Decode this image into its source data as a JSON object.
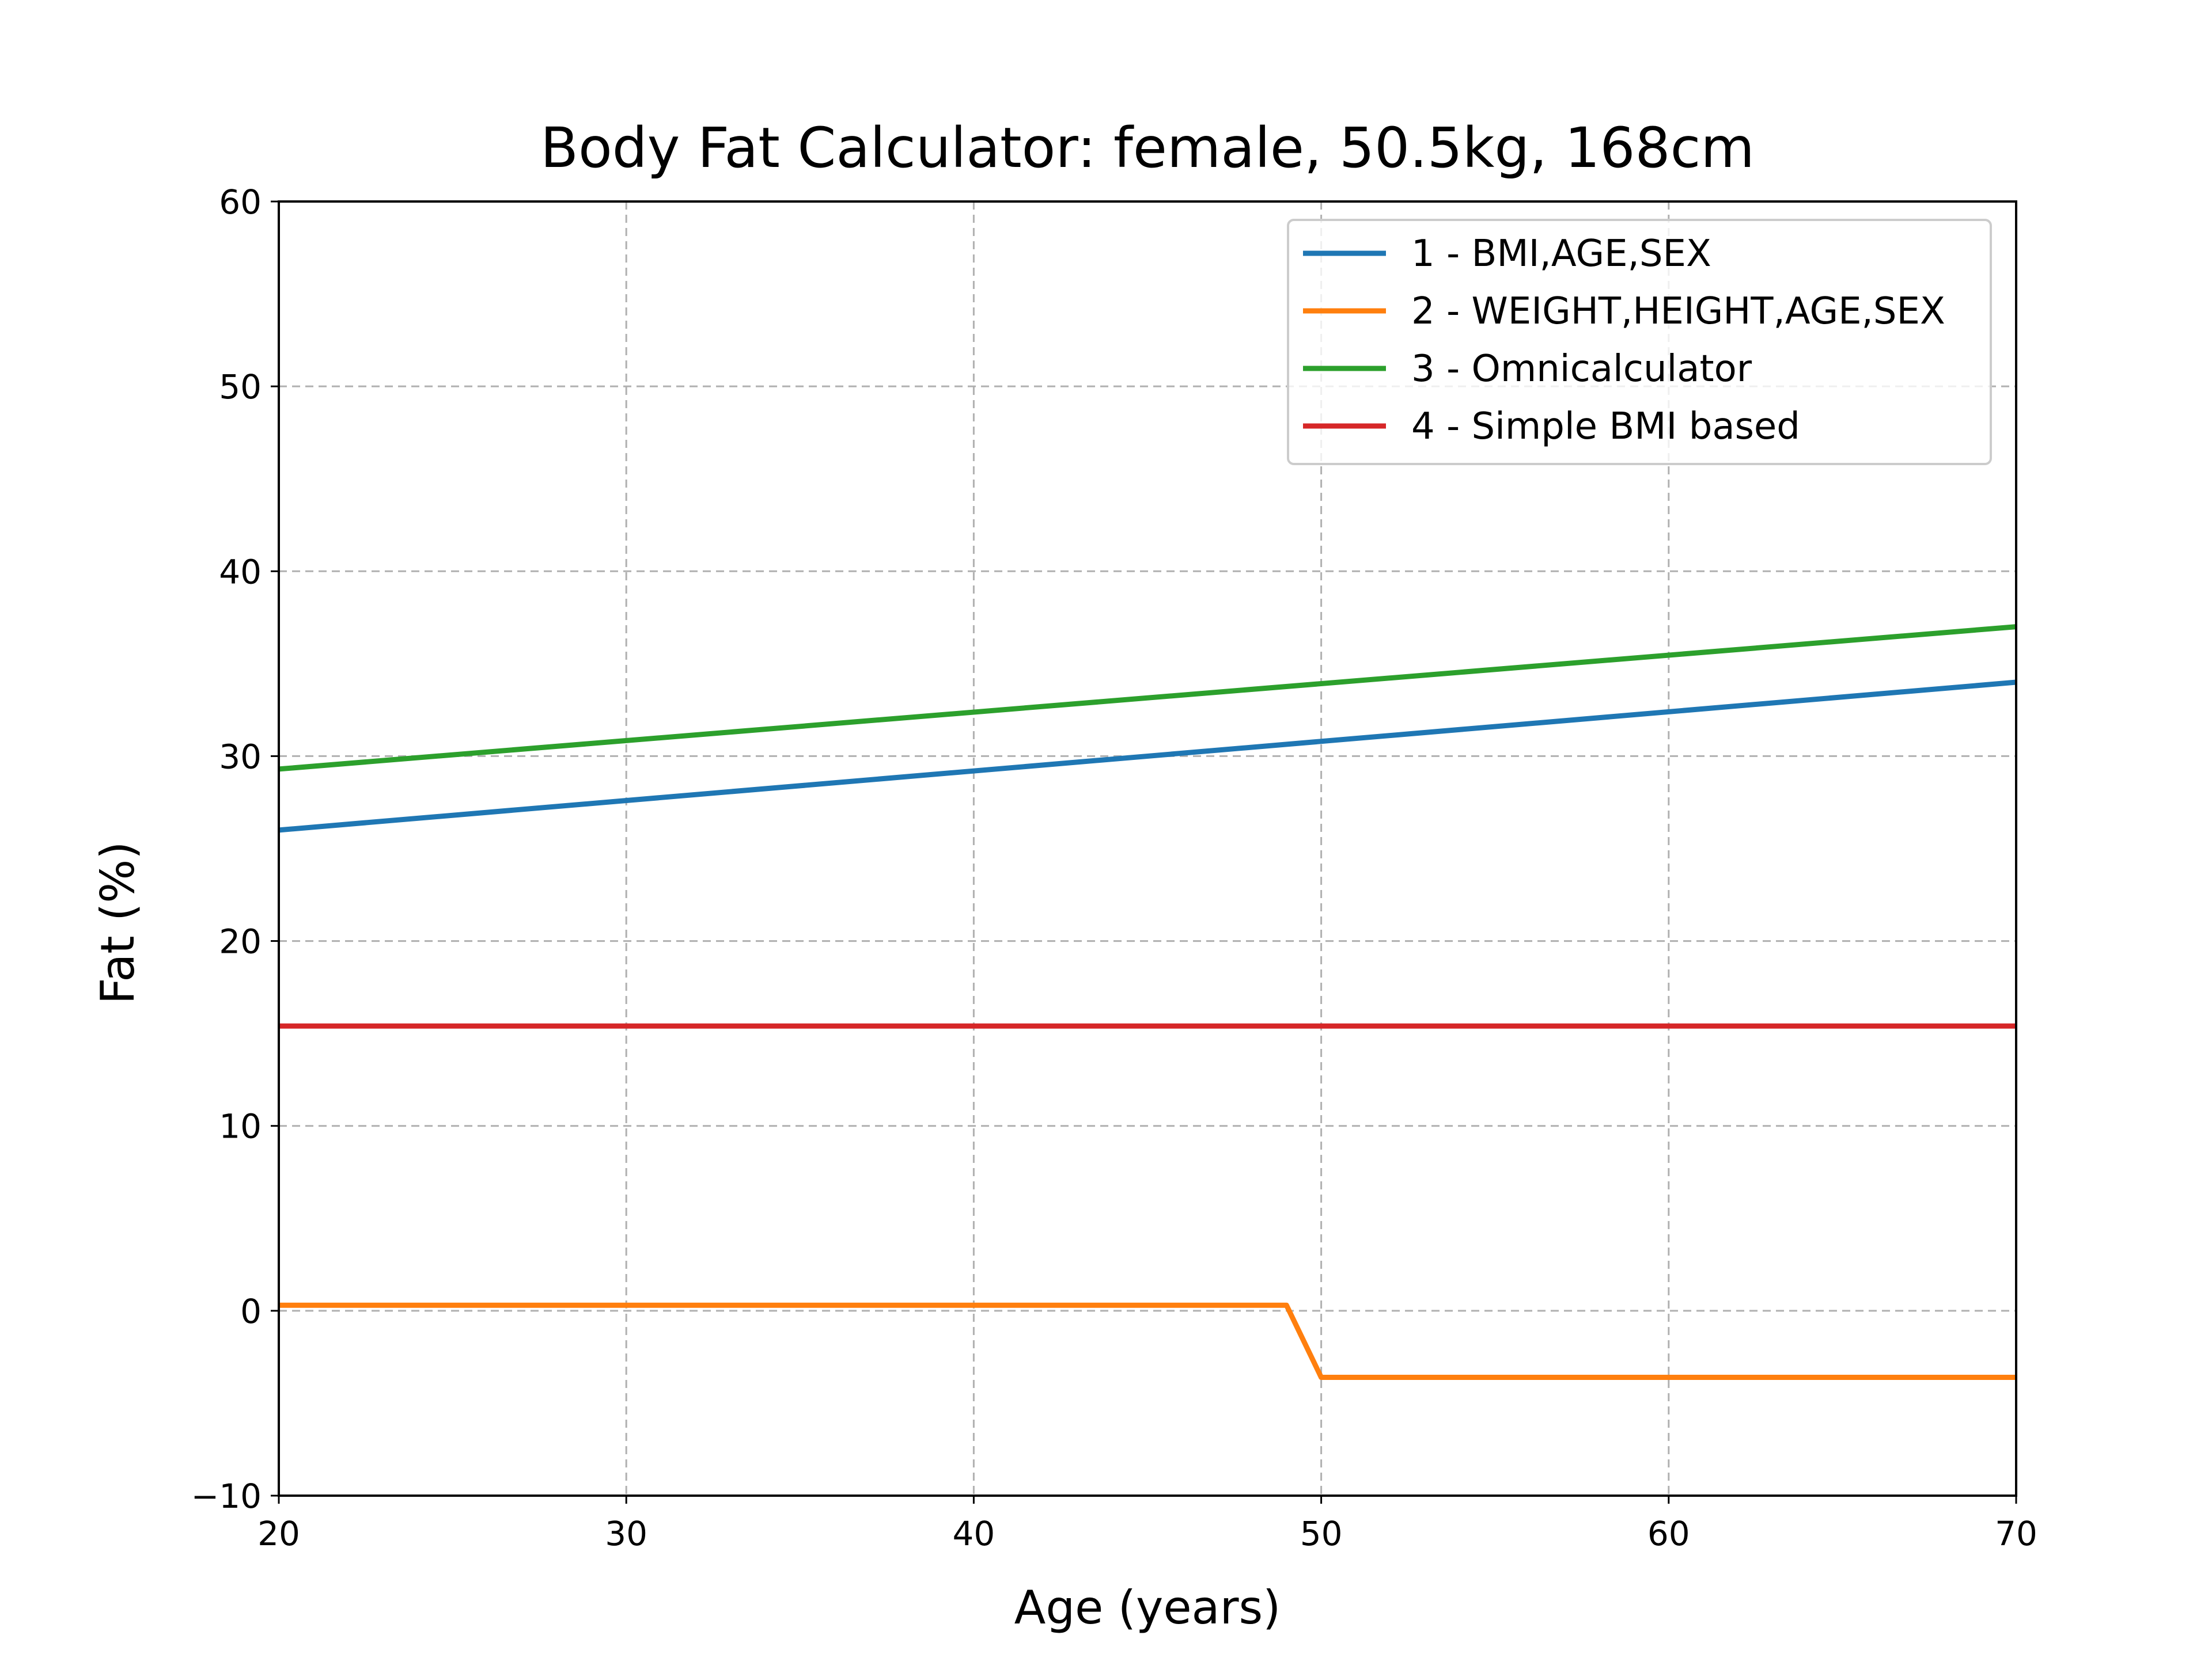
{
  "chart_data": {
    "type": "line",
    "title": "Body Fat Calculator: female, 50.5kg, 168cm",
    "xlabel": "Age (years)",
    "ylabel": "Fat (%)",
    "xlim": [
      20,
      70
    ],
    "ylim": [
      -10,
      60
    ],
    "xticks": [
      20,
      30,
      40,
      50,
      60,
      70
    ],
    "yticks": [
      -10,
      0,
      10,
      20,
      30,
      40,
      50,
      60
    ],
    "xtick_labels": [
      "20",
      "30",
      "40",
      "50",
      "60",
      "70"
    ],
    "ytick_labels": [
      "−10",
      "0",
      "10",
      "20",
      "30",
      "40",
      "50",
      "60"
    ],
    "grid": true,
    "legend_position": "top-right",
    "series": [
      {
        "name": "1 - BMI,AGE,SEX",
        "color": "#1f77b4",
        "x": [
          20,
          70
        ],
        "y": [
          26.0,
          34.0
        ]
      },
      {
        "name": "2 - WEIGHT,HEIGHT,AGE,SEX",
        "color": "#ff7f0e",
        "x": [
          20,
          49,
          50,
          70
        ],
        "y": [
          0.3,
          0.3,
          -3.6,
          -3.6
        ]
      },
      {
        "name": "3 - Omnicalculator",
        "color": "#2ca02c",
        "x": [
          20,
          70
        ],
        "y": [
          29.3,
          37.0
        ]
      },
      {
        "name": "4 - Simple BMI based",
        "color": "#d62728",
        "x": [
          20,
          70
        ],
        "y": [
          15.4,
          15.4
        ]
      }
    ]
  }
}
